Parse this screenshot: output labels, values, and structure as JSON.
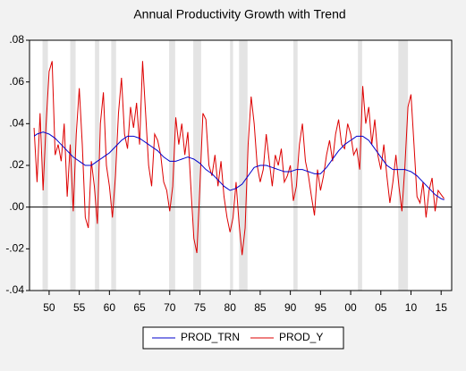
{
  "chart_data": {
    "type": "line",
    "title": "Annual Productivity Growth with Trend",
    "xlim": [
      1946.75,
      2016.75
    ],
    "ylim": [
      -0.04,
      0.08
    ],
    "yticks": [
      {
        "value": 0.08,
        "label": ".08"
      },
      {
        "value": 0.06,
        "label": ".06"
      },
      {
        "value": 0.04,
        "label": ".04"
      },
      {
        "value": 0.02,
        "label": ".02"
      },
      {
        "value": 0,
        "label": ".00"
      },
      {
        "value": -0.02,
        "label": "-.02"
      },
      {
        "value": -0.04,
        "label": "-.04"
      }
    ],
    "xticks": [
      {
        "value": 1950,
        "label": "50"
      },
      {
        "value": 1955,
        "label": "55"
      },
      {
        "value": 1960,
        "label": "60"
      },
      {
        "value": 1965,
        "label": "65"
      },
      {
        "value": 1970,
        "label": "70"
      },
      {
        "value": 1975,
        "label": "75"
      },
      {
        "value": 1980,
        "label": "80"
      },
      {
        "value": 1985,
        "label": "85"
      },
      {
        "value": 1990,
        "label": "90"
      },
      {
        "value": 1995,
        "label": "95"
      },
      {
        "value": 2000,
        "label": "00"
      },
      {
        "value": 2005,
        "label": "05"
      },
      {
        "value": 2010,
        "label": "10"
      },
      {
        "value": 2015,
        "label": "15"
      }
    ],
    "shading": [
      [
        1948.9,
        1949.8
      ],
      [
        1953.5,
        1954.4
      ],
      [
        1957.6,
        1958.3
      ],
      [
        1960.3,
        1961.1
      ],
      [
        1969.9,
        1970.9
      ],
      [
        1973.9,
        1975.2
      ],
      [
        1980.0,
        1980.5
      ],
      [
        1981.5,
        1982.9
      ],
      [
        1990.5,
        1991.2
      ],
      [
        2001.2,
        2001.9
      ],
      [
        2007.9,
        2009.5
      ]
    ],
    "zero_line": true,
    "legend": "bottom",
    "x": [
      1947.5,
      1948,
      1948.5,
      1949,
      1949.5,
      1950,
      1950.5,
      1951,
      1951.5,
      1952,
      1952.5,
      1953,
      1953.5,
      1954,
      1954.5,
      1955,
      1955.5,
      1956,
      1956.5,
      1957,
      1957.5,
      1958,
      1958.5,
      1959,
      1959.5,
      1960,
      1960.5,
      1961,
      1961.5,
      1962,
      1962.5,
      1963,
      1963.5,
      1964,
      1964.5,
      1965,
      1965.5,
      1966,
      1966.5,
      1967,
      1967.5,
      1968,
      1968.5,
      1969,
      1969.5,
      1970,
      1970.5,
      1971,
      1971.5,
      1972,
      1972.5,
      1973,
      1973.5,
      1974,
      1974.5,
      1975,
      1975.5,
      1976,
      1976.5,
      1977,
      1977.5,
      1978,
      1978.5,
      1979,
      1979.5,
      1980,
      1980.5,
      1981,
      1981.5,
      1982,
      1982.5,
      1983,
      1983.5,
      1984,
      1984.5,
      1985,
      1985.5,
      1986,
      1986.5,
      1987,
      1987.5,
      1988,
      1988.5,
      1989,
      1989.5,
      1990,
      1990.5,
      1991,
      1991.5,
      1992,
      1992.5,
      1993,
      1993.5,
      1994,
      1994.5,
      1995,
      1995.5,
      1996,
      1996.5,
      1997,
      1997.5,
      1998,
      1998.5,
      1999,
      1999.5,
      2000,
      2000.5,
      2001,
      2001.5,
      2002,
      2002.5,
      2003,
      2003.5,
      2004,
      2004.5,
      2005,
      2005.5,
      2006,
      2006.5,
      2007,
      2007.5,
      2008,
      2008.5,
      2009,
      2009.5,
      2010,
      2010.5,
      2011,
      2011.5,
      2012,
      2012.5,
      2013,
      2013.5,
      2014,
      2014.5,
      2015,
      2015.5
    ],
    "series": [
      {
        "name": "PROD_TRN",
        "color": "#0000cc",
        "values": [
          0.034,
          0.035,
          0.0355,
          0.036,
          0.0355,
          0.035,
          0.034,
          0.033,
          0.0315,
          0.03,
          0.0285,
          0.027,
          0.0255,
          0.024,
          0.023,
          0.022,
          0.021,
          0.02,
          0.02,
          0.02,
          0.021,
          0.022,
          0.023,
          0.024,
          0.025,
          0.026,
          0.0275,
          0.029,
          0.0305,
          0.032,
          0.033,
          0.034,
          0.034,
          0.034,
          0.0335,
          0.033,
          0.032,
          0.031,
          0.03,
          0.029,
          0.028,
          0.027,
          0.0255,
          0.024,
          0.023,
          0.022,
          0.022,
          0.022,
          0.0225,
          0.023,
          0.0235,
          0.024,
          0.0235,
          0.023,
          0.022,
          0.021,
          0.0195,
          0.018,
          0.017,
          0.016,
          0.0145,
          0.013,
          0.0115,
          0.01,
          0.009,
          0.008,
          0.0085,
          0.009,
          0.01,
          0.011,
          0.013,
          0.015,
          0.017,
          0.019,
          0.0195,
          0.02,
          0.02,
          0.02,
          0.0195,
          0.019,
          0.0185,
          0.018,
          0.0175,
          0.017,
          0.017,
          0.017,
          0.0175,
          0.018,
          0.018,
          0.018,
          0.0175,
          0.017,
          0.0165,
          0.016,
          0.016,
          0.016,
          0.0175,
          0.019,
          0.021,
          0.023,
          0.025,
          0.027,
          0.0285,
          0.03,
          0.031,
          0.032,
          0.033,
          0.034,
          0.034,
          0.034,
          0.033,
          0.032,
          0.03,
          0.028,
          0.026,
          0.024,
          0.022,
          0.02,
          0.019,
          0.018,
          0.018,
          0.018,
          0.018,
          0.018,
          0.0175,
          0.017,
          0.016,
          0.015,
          0.0135,
          0.012,
          0.0105,
          0.009,
          0.0075,
          0.006,
          0.005,
          0.004,
          0.0035
        ]
      },
      {
        "name": "PROD_Y",
        "color": "#dd0000",
        "values": [
          0.038,
          0.012,
          0.045,
          0.008,
          0.04,
          0.065,
          0.07,
          0.025,
          0.03,
          0.022,
          0.04,
          0.005,
          0.03,
          -0.002,
          0.035,
          0.057,
          0.03,
          -0.005,
          -0.01,
          0.022,
          0.01,
          -0.008,
          0.04,
          0.055,
          0.02,
          0.01,
          -0.005,
          0.015,
          0.045,
          0.062,
          0.035,
          0.028,
          0.048,
          0.038,
          0.05,
          0.03,
          0.07,
          0.045,
          0.02,
          0.01,
          0.035,
          0.032,
          0.025,
          0.012,
          0.008,
          -0.002,
          0.01,
          0.043,
          0.03,
          0.04,
          0.025,
          0.036,
          0.01,
          -0.015,
          -0.022,
          0.01,
          0.045,
          0.042,
          0.02,
          0.015,
          0.025,
          0.01,
          0.022,
          0.005,
          -0.005,
          -0.012,
          -0.005,
          0.012,
          -0.008,
          -0.023,
          -0.01,
          0.03,
          0.053,
          0.04,
          0.02,
          0.012,
          0.018,
          0.035,
          0.022,
          0.01,
          0.025,
          0.02,
          0.028,
          0.012,
          0.015,
          0.02,
          0.003,
          0.01,
          0.03,
          0.04,
          0.022,
          0.015,
          0.005,
          -0.004,
          0.018,
          0.008,
          0.015,
          0.025,
          0.032,
          0.022,
          0.035,
          0.042,
          0.03,
          0.028,
          0.04,
          0.035,
          0.025,
          0.028,
          0.018,
          0.058,
          0.04,
          0.048,
          0.03,
          0.042,
          0.025,
          0.018,
          0.03,
          0.015,
          0.002,
          0.012,
          0.025,
          0.01,
          -0.002,
          0.02,
          0.048,
          0.054,
          0.03,
          0.005,
          0.002,
          0.012,
          -0.005,
          0.008,
          0.014,
          -0.002,
          0.008,
          0.006,
          0.004
        ]
      }
    ]
  }
}
